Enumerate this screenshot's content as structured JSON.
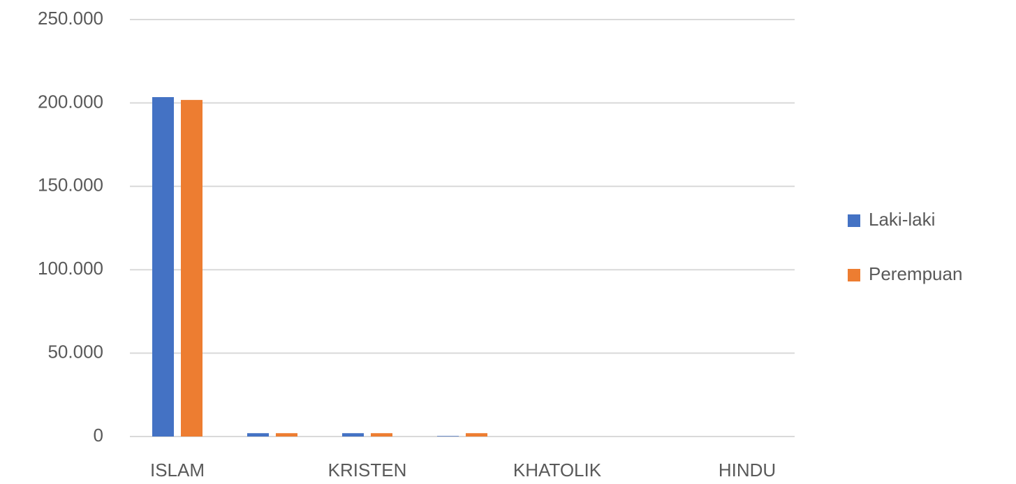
{
  "chart_data": {
    "type": "bar",
    "categories": [
      "ISLAM",
      null,
      "KRISTEN",
      null,
      "KHATOLIK",
      null,
      "HINDU"
    ],
    "series": [
      {
        "name": "Laki-laki",
        "color": "#4472c4",
        "values": [
          203500,
          2000,
          2000,
          300,
          0,
          0,
          0
        ]
      },
      {
        "name": "Perempuan",
        "color": "#ed7d31",
        "values": [
          201800,
          2000,
          2000,
          2000,
          0,
          0,
          0
        ]
      }
    ],
    "ylim": [
      0,
      250000
    ],
    "yticks": [
      {
        "value": 0,
        "label": "0"
      },
      {
        "value": 50000,
        "label": "50.000"
      },
      {
        "value": 100000,
        "label": "100.000"
      },
      {
        "value": 150000,
        "label": "150.000"
      },
      {
        "value": 200000,
        "label": "200.000"
      },
      {
        "value": 250000,
        "label": "250.000"
      }
    ],
    "grid": true,
    "legend": "right"
  }
}
